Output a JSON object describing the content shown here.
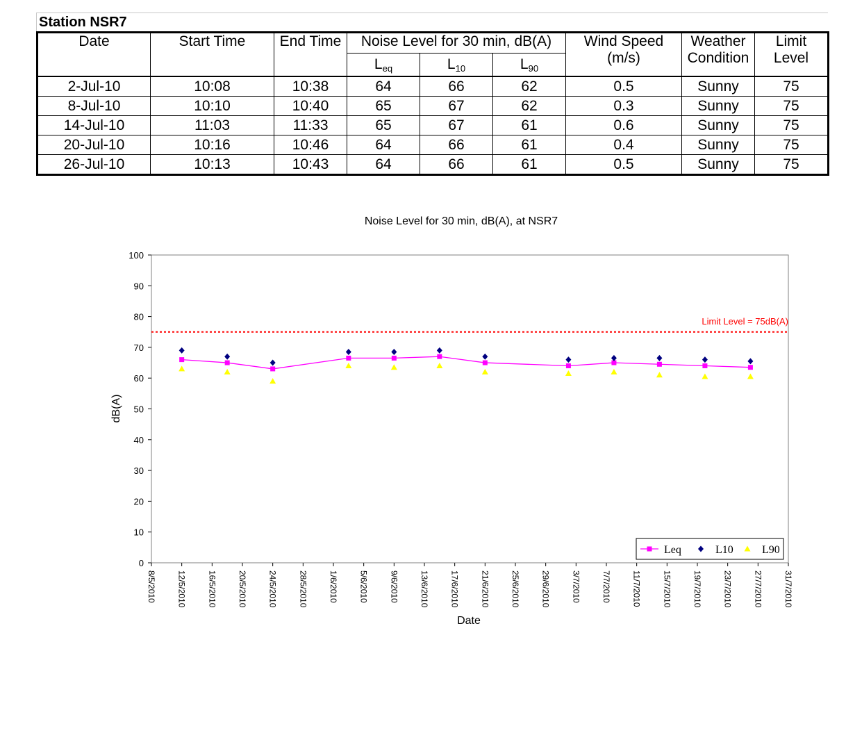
{
  "station_title": "Station NSR7",
  "table": {
    "headers": {
      "date": "Date",
      "start_time": "Start Time",
      "end_time": "End Time",
      "noise_level": "Noise Level for 30 min, dB(A)",
      "leq_base": "L",
      "leq_sub": "eq",
      "l10_base": "L",
      "l10_sub": "10",
      "l90_base": "L",
      "l90_sub": "90",
      "wind_line1": "Wind Speed",
      "wind_line2": "(m/s)",
      "weather_line1": "Weather",
      "weather_line2": "Condition",
      "limit_line1": "Limit",
      "limit_line2": "Level"
    },
    "rows": [
      [
        "2-Jul-10",
        "10:08",
        "10:38",
        "64",
        "66",
        "62",
        "0.5",
        "Sunny",
        "75"
      ],
      [
        "8-Jul-10",
        "10:10",
        "10:40",
        "65",
        "67",
        "62",
        "0.3",
        "Sunny",
        "75"
      ],
      [
        "14-Jul-10",
        "11:03",
        "11:33",
        "65",
        "67",
        "61",
        "0.6",
        "Sunny",
        "75"
      ],
      [
        "20-Jul-10",
        "10:16",
        "10:46",
        "64",
        "66",
        "61",
        "0.4",
        "Sunny",
        "75"
      ],
      [
        "26-Jul-10",
        "10:13",
        "10:43",
        "64",
        "66",
        "61",
        "0.5",
        "Sunny",
        "75"
      ]
    ]
  },
  "chart_data": {
    "type": "line",
    "title": "Noise Level for 30 min, dB(A), at NSR7",
    "xlabel": "Date",
    "ylabel": "dB(A)",
    "ylim": [
      0,
      100
    ],
    "yticks": [
      0,
      10,
      20,
      30,
      40,
      50,
      60,
      70,
      80,
      90,
      100
    ],
    "xlim": [
      "2010-05-08",
      "2010-07-31"
    ],
    "xtick_labels": [
      "8/5/2010",
      "12/5/2010",
      "16/5/2010",
      "20/5/2010",
      "24/5/2010",
      "28/5/2010",
      "1/6/2010",
      "5/6/2010",
      "9/6/2010",
      "13/6/2010",
      "17/6/2010",
      "21/6/2010",
      "25/6/2010",
      "29/6/2010",
      "3/7/2010",
      "7/7/2010",
      "11/7/2010",
      "15/7/2010",
      "19/7/2010",
      "23/7/2010",
      "27/7/2010",
      "31/7/2010"
    ],
    "x": [
      "2010-05-12",
      "2010-05-18",
      "2010-05-24",
      "2010-06-03",
      "2010-06-09",
      "2010-06-15",
      "2010-06-21",
      "2010-07-02",
      "2010-07-08",
      "2010-07-14",
      "2010-07-20",
      "2010-07-26"
    ],
    "series": [
      {
        "name": "Leq",
        "values": [
          66,
          65,
          63,
          66.5,
          66.5,
          67,
          65,
          64,
          65,
          64.5,
          64,
          63.5
        ],
        "color": "#ff00ff",
        "marker": "square",
        "line": true
      },
      {
        "name": "L10",
        "values": [
          69,
          67,
          65,
          68.5,
          68.5,
          69,
          67,
          66,
          66.5,
          66.5,
          66,
          65.5
        ],
        "color": "#000080",
        "marker": "diamond",
        "line": false
      },
      {
        "name": "L90",
        "values": [
          63,
          62,
          59,
          64,
          63.5,
          64,
          62,
          61.5,
          62,
          61,
          60.5,
          60.5
        ],
        "color": "#ffff00",
        "marker": "triangle",
        "line": false
      }
    ],
    "limit_line": {
      "value": 75,
      "label": "Limit Level = 75dB(A)",
      "color": "#ff0000"
    },
    "legend_position": "bottom-right",
    "grid": false
  }
}
